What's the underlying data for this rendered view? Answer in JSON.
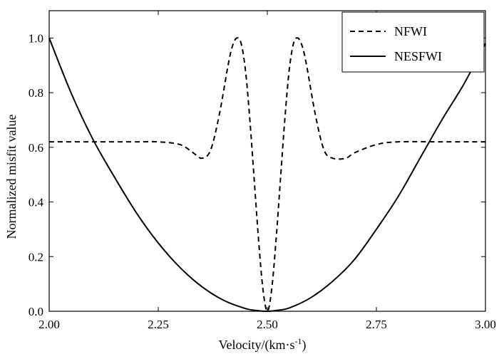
{
  "chart_data": {
    "type": "line",
    "xlabel": "Velocity/(km·s",
    "xlabel_sup": "-1",
    "xlabel_suffix": ")",
    "ylabel": "Normalized misfit value",
    "xlim": [
      2.0,
      3.0
    ],
    "ylim": [
      0.0,
      1.1
    ],
    "x_ticks": [
      "2.00",
      "2.25",
      "2.50",
      "2.75",
      "3.00"
    ],
    "y_ticks": [
      "0.0",
      "0.2",
      "0.4",
      "0.6",
      "0.8",
      "1.0"
    ],
    "grid": false,
    "legend_position": "top-right",
    "series": [
      {
        "name": "NFWI",
        "style": "dashed",
        "color": "#000000",
        "x": [
          2.0,
          2.1,
          2.2,
          2.25,
          2.3,
          2.33,
          2.35,
          2.37,
          2.39,
          2.41,
          2.42,
          2.43,
          2.44,
          2.45,
          2.46,
          2.47,
          2.48,
          2.49,
          2.5,
          2.51,
          2.52,
          2.53,
          2.54,
          2.55,
          2.56,
          2.57,
          2.58,
          2.59,
          2.61,
          2.63,
          2.65,
          2.68,
          2.7,
          2.75,
          2.8,
          2.9,
          3.0
        ],
        "y": [
          0.62,
          0.62,
          0.62,
          0.62,
          0.61,
          0.58,
          0.56,
          0.59,
          0.72,
          0.9,
          0.97,
          1.0,
          0.98,
          0.88,
          0.7,
          0.48,
          0.26,
          0.08,
          0.0,
          0.08,
          0.26,
          0.48,
          0.7,
          0.88,
          0.98,
          1.0,
          0.97,
          0.9,
          0.72,
          0.59,
          0.56,
          0.56,
          0.58,
          0.61,
          0.62,
          0.62,
          0.62
        ]
      },
      {
        "name": "NESFWI",
        "style": "solid",
        "color": "#000000",
        "x": [
          2.0,
          2.05,
          2.1,
          2.15,
          2.2,
          2.25,
          2.3,
          2.35,
          2.4,
          2.45,
          2.48,
          2.5,
          2.52,
          2.55,
          2.6,
          2.65,
          2.7,
          2.75,
          2.8,
          2.85,
          2.9,
          2.95,
          3.0
        ],
        "y": [
          1.0,
          0.8,
          0.63,
          0.49,
          0.36,
          0.25,
          0.16,
          0.09,
          0.04,
          0.01,
          0.002,
          0.0,
          0.003,
          0.012,
          0.05,
          0.11,
          0.19,
          0.3,
          0.42,
          0.56,
          0.7,
          0.83,
          0.98
        ]
      }
    ]
  }
}
